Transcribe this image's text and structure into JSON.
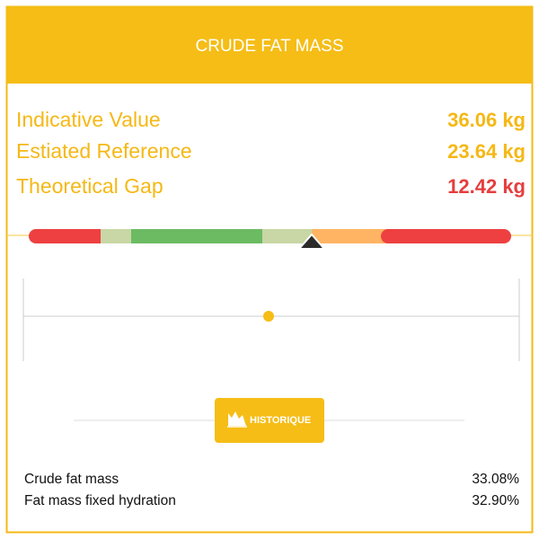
{
  "header": {
    "title": "CRUDE FAT MASS"
  },
  "metrics": [
    {
      "label": "Indicative Value",
      "value": "36.06 kg"
    },
    {
      "label": "Estiated Reference",
      "value": "23.64 kg"
    },
    {
      "label": "Theoretical Gap",
      "value": "12.42 kg"
    }
  ],
  "button": {
    "label": "HISTORIQUE"
  },
  "details": [
    {
      "label": "Crude fat mass",
      "value": "33.08%"
    },
    {
      "label": "Fat mass fixed hydration",
      "value": "32.90%"
    }
  ]
}
